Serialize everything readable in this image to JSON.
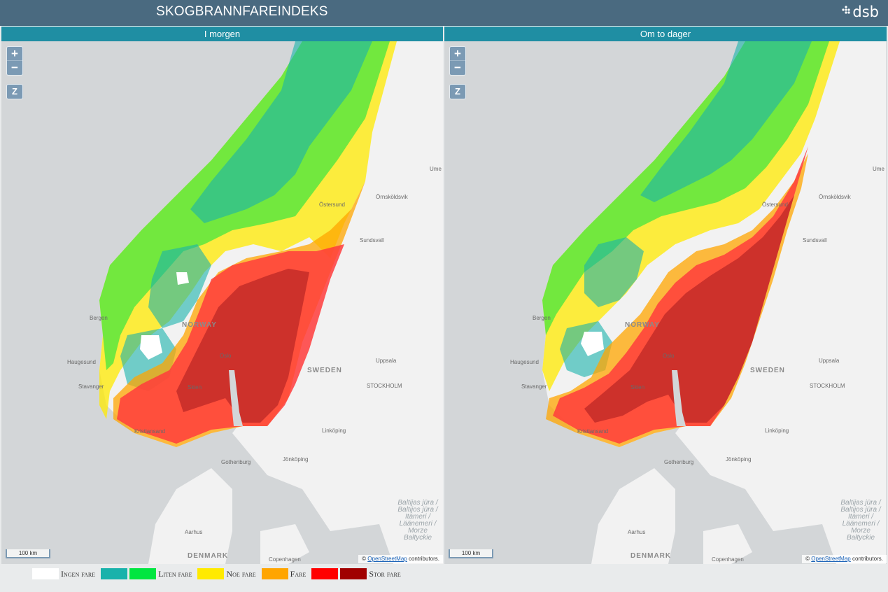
{
  "app": {
    "title": "SKOGBRANNFAREINDEKS",
    "logo_text": "dsb"
  },
  "panels": [
    {
      "title": "I morgen",
      "zoom_in": "+",
      "zoom_out": "−",
      "z_button": "Z",
      "scale_label": "100 km",
      "attribution_prefix": "© ",
      "attribution_link": "OpenStreetMap",
      "attribution_suffix": " contributors."
    },
    {
      "title": "Om to dager",
      "zoom_in": "+",
      "zoom_out": "−",
      "z_button": "Z",
      "scale_label": "100 km",
      "attribution_prefix": "© ",
      "attribution_link": "OpenStreetMap",
      "attribution_suffix": " contributors."
    }
  ],
  "map_labels": {
    "cities": [
      "Ume",
      "Örnsköldsvik",
      "Östersund",
      "Sundsvall",
      "Bergen",
      "Haugesund",
      "Stavanger",
      "Skien",
      "Oslo",
      "Uppsala",
      "STOCKHOLM",
      "Linköping",
      "Jönköping",
      "Gothenburg",
      "Kristiansand",
      "Aarhus",
      "Copenhagen"
    ],
    "countries": [
      "NORWAY",
      "SWEDEN",
      "DENMARK"
    ],
    "sea": "Baltijas jūra / Baltijos jūra / Itämeri / Läänemeri / Morze Bałtyckie"
  },
  "legend": [
    {
      "label": "Ingen fare",
      "colors": [
        "#ffffff"
      ]
    },
    {
      "label": "Liten fare",
      "colors": [
        "#19b2ab",
        "#00e640"
      ]
    },
    {
      "label": "Noe fare",
      "colors": [
        "#ffea00"
      ]
    },
    {
      "label": "Fare",
      "colors": [
        "#ffa500"
      ]
    },
    {
      "label": "Stor fare",
      "colors": [
        "#ff0000",
        "#a00000"
      ]
    }
  ]
}
